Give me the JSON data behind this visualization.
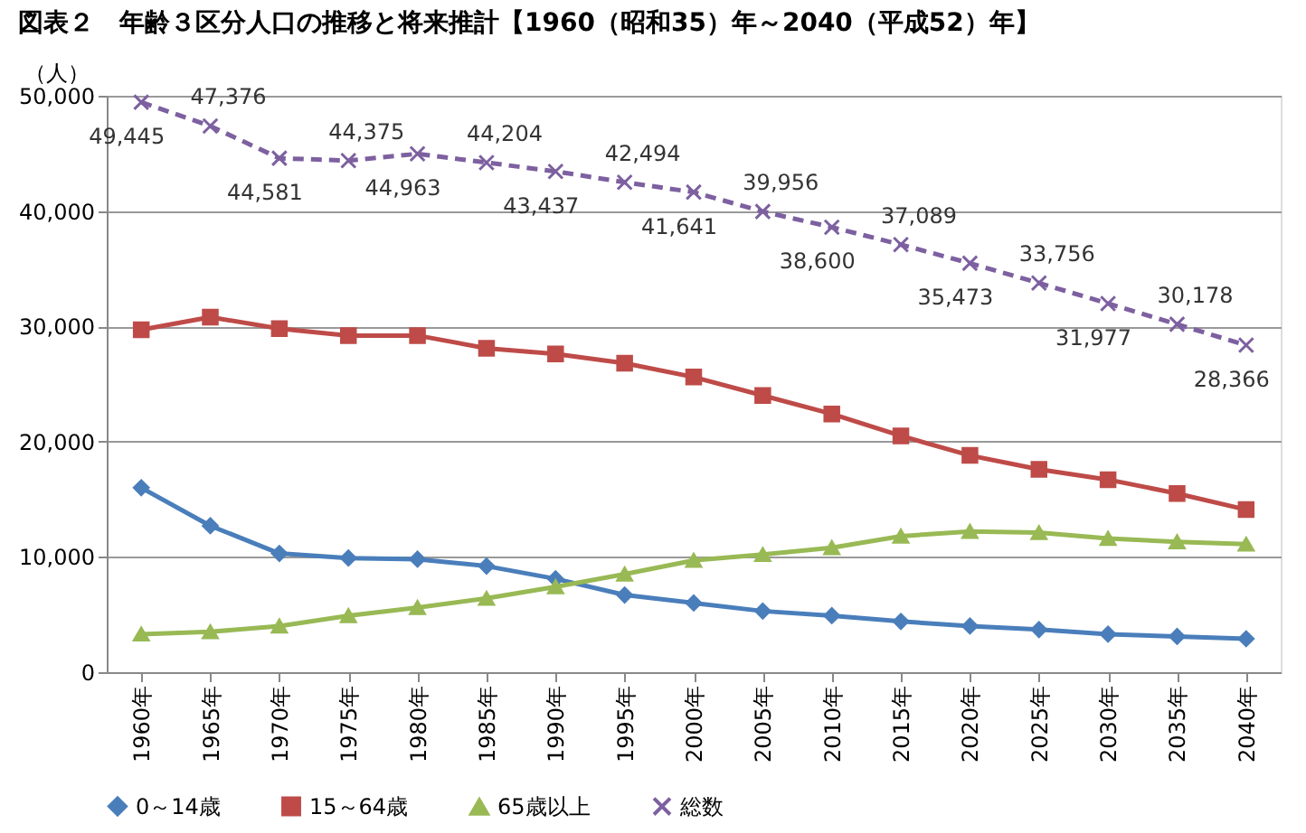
{
  "chart_data": {
    "type": "line",
    "title": "図表２　年齢３区分人口の推移と将来推計【1960（昭和35）年～2040（平成52）年】",
    "ylabel": "（人）",
    "categories": [
      "1960年",
      "1965年",
      "1970年",
      "1975年",
      "1980年",
      "1985年",
      "1990年",
      "1995年",
      "2000年",
      "2005年",
      "2010年",
      "2015年",
      "2020年",
      "2025年",
      "2030年",
      "2035年",
      "2040年"
    ],
    "series": [
      {
        "name": "0～14歳",
        "color": "#4a7ebb",
        "marker": "diamond",
        "line_style": "solid",
        "values": [
          16000,
          12700,
          10300,
          9900,
          9800,
          9200,
          8100,
          6700,
          6000,
          5300,
          4900,
          4400,
          4000,
          3700,
          3300,
          3100,
          2900
        ]
      },
      {
        "name": "15～64歳",
        "color": "#be4b48",
        "marker": "square",
        "line_style": "solid",
        "values": [
          29700,
          30800,
          29800,
          29200,
          29200,
          28100,
          27600,
          26800,
          25600,
          24000,
          22400,
          20500,
          18800,
          17600,
          16700,
          15500,
          14100
        ]
      },
      {
        "name": "65歳以上",
        "color": "#98b954",
        "marker": "triangle",
        "line_style": "solid",
        "values": [
          3300,
          3500,
          4000,
          4900,
          5600,
          6400,
          7400,
          8500,
          9700,
          10200,
          10800,
          11800,
          12200,
          12100,
          11600,
          11300,
          11100
        ]
      },
      {
        "name": "総数",
        "color": "#7d60a0",
        "marker": "cross",
        "line_style": "dashed",
        "values": [
          49445,
          47376,
          44581,
          44375,
          44963,
          44204,
          43437,
          42494,
          41641,
          39956,
          38600,
          37089,
          35473,
          33756,
          31977,
          30178,
          28366
        ],
        "value_labels": [
          "49,445",
          "47,376",
          "44,581",
          "44,375",
          "44,963",
          "44,204",
          "43,437",
          "42,494",
          "41,641",
          "39,956",
          "38,600",
          "37,089",
          "35,473",
          "33,756",
          "31,977",
          "30,178",
          "28,366"
        ]
      }
    ],
    "ylim": [
      0,
      50000
    ],
    "yticks": [
      0,
      {
        "value": 10000,
        "label": "10,000"
      },
      {
        "value": 20000,
        "label": "20,000"
      },
      {
        "value": 30000,
        "label": "30,000"
      },
      {
        "value": 40000,
        "label": "40,000"
      },
      {
        "value": 50000,
        "label": "50,000"
      }
    ],
    "grid": "y",
    "legend": "bottom"
  }
}
